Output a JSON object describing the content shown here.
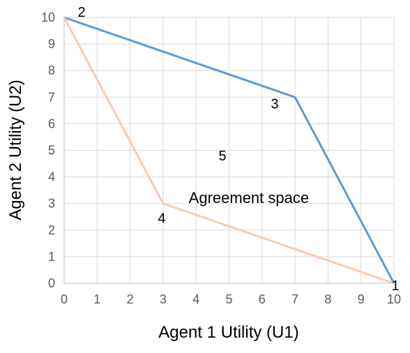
{
  "chart_data": {
    "type": "line",
    "xlabel": "Agent 1 Utility (U1)",
    "ylabel": "Agent 2 Utility (U2)",
    "xlim": [
      0,
      10
    ],
    "ylim": [
      0,
      10
    ],
    "x_ticks": [
      0,
      1,
      2,
      3,
      4,
      5,
      6,
      7,
      8,
      9,
      10
    ],
    "y_ticks": [
      0,
      1,
      2,
      3,
      4,
      5,
      6,
      7,
      8,
      9,
      10
    ],
    "grid": true,
    "legend": "none",
    "series": [
      {
        "color": "#5b9bd5",
        "points": [
          {
            "x": 0,
            "y": 10
          },
          {
            "x": 7,
            "y": 7
          },
          {
            "x": 10,
            "y": 0
          }
        ]
      },
      {
        "color": "#f8cbad",
        "points": [
          {
            "x": 0,
            "y": 10
          },
          {
            "x": 3,
            "y": 3
          },
          {
            "x": 10,
            "y": 0
          }
        ]
      }
    ],
    "annotations": [
      {
        "text": "1",
        "x": 10,
        "y": 0
      },
      {
        "text": "2",
        "x": 0,
        "y": 10
      },
      {
        "text": "3",
        "x": 7,
        "y": 7
      },
      {
        "text": "4",
        "x": 3,
        "y": 3
      },
      {
        "text": "5",
        "x": 4.8,
        "y": 4.8
      },
      {
        "text": "Agreement space",
        "x": 5.6,
        "y": 3.2
      }
    ]
  }
}
